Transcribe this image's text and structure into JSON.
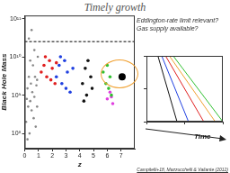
{
  "chart_data": [
    {
      "type": "scatter",
      "title": "Timely growth",
      "x_label": "z",
      "y_label": "Black Hole Mass",
      "annotations": [
        "Eddington-rate limit relevant?",
        "Gas supply available?",
        "Campitelli+18, Mazzucchelli & Valiante (2012)"
      ],
      "log": "y",
      "grid": false,
      "xlim": [
        0,
        8
      ],
      "xticks": [
        0,
        1,
        2,
        3,
        4,
        5,
        6,
        7
      ],
      "ylim": [
        40000000,
        120000000000
      ],
      "yticks": [
        {
          "value": 100000000,
          "label": "10⁸"
        },
        {
          "value": 1000000000,
          "label": "10⁹"
        },
        {
          "value": 10000000000,
          "label": "10¹⁰"
        },
        {
          "value": 100000000000,
          "label": "10¹¹"
        }
      ],
      "series": [
        {
          "color": "#888888",
          "marker": "circle",
          "x": [
            0.1,
            0.15,
            0.2,
            0.25,
            0.3,
            0.35,
            0.4,
            0.45,
            0.5,
            0.55,
            0.6,
            0.65,
            0.7,
            0.75,
            0.8,
            0.85,
            0.9,
            0.95,
            0.3,
            0.5,
            0.2,
            0.7,
            0.4,
            0.9
          ],
          "values": [
            200000000,
            800000000,
            1500000000,
            500000000,
            3000000000,
            100000000,
            700000000,
            2000000000,
            400000000,
            1200000000,
            6000000000,
            250000000,
            900000000,
            3000000000,
            150000000,
            1800000000,
            500000000,
            10000000000,
            30000000000,
            50000000000,
            70000000,
            15000000000,
            8000000000,
            2500000000
          ]
        },
        {
          "color": "#e02020",
          "marker": "circle",
          "x": [
            1.2,
            1.4,
            1.6,
            1.8,
            2.0,
            2.2,
            1.5,
            2.3,
            1.9
          ],
          "values": [
            4000000000,
            6000000000,
            3000000000,
            8000000000,
            5000000000,
            2000000000,
            10000000000,
            7000000000,
            2500000000
          ]
        },
        {
          "color": "#2040e0",
          "marker": "circle",
          "x": [
            2.3,
            2.5,
            2.7,
            2.9,
            3.1,
            3.3,
            3.5,
            2.6,
            3.0
          ],
          "values": [
            3000000000,
            6000000000,
            2000000000,
            8000000000,
            4000000000,
            1200000000,
            5000000000,
            10000000000,
            1500000000
          ]
        },
        {
          "color": "#111111",
          "marker": "circle",
          "x": [
            4.2,
            4.4,
            4.5,
            4.6,
            4.8,
            4.9,
            4.3
          ],
          "values": [
            2000000000,
            5000000000,
            1000000000,
            8000000000,
            3000000000,
            1500000000,
            700000000
          ]
        },
        {
          "color": "#30c030",
          "marker": "circle",
          "x": [
            5.7,
            5.9,
            6.0,
            6.1,
            6.2,
            6.3
          ],
          "values": [
            4000000000,
            2000000000,
            6000000000,
            1500000000,
            3000000000,
            1000000000
          ]
        },
        {
          "color": "#e040e0",
          "marker": "circle",
          "x": [
            6.0,
            6.2,
            6.4,
            6.3
          ],
          "values": [
            800000000,
            1200000000,
            600000000,
            900000000
          ]
        },
        {
          "color": "#000000",
          "marker": "circle",
          "x": [
            7.08
          ],
          "values": [
            3000000000
          ]
        },
        {
          "color": "#000000",
          "type": "line",
          "line_style": "dashed",
          "x": [
            0,
            8
          ],
          "values": [
            25000000000,
            25000000000
          ]
        }
      ]
    },
    {
      "type": "line",
      "x_label": "Time",
      "grid": false,
      "tick_labels": false,
      "xlim": [
        0,
        1
      ],
      "xticks": [
        0,
        0.5,
        1
      ],
      "ylim": [
        0,
        1
      ],
      "yticks": [
        0,
        0.5,
        1
      ],
      "series": [
        {
          "color": "#111111",
          "x": [
            0,
            0.15,
            0.4
          ],
          "values": [
            1,
            1,
            0
          ]
        },
        {
          "color": "#2040e0",
          "x": [
            0,
            0.2,
            0.55
          ],
          "values": [
            1,
            1,
            0
          ]
        },
        {
          "color": "#e02020",
          "x": [
            0,
            0.25,
            0.75
          ],
          "values": [
            1,
            1,
            0
          ]
        },
        {
          "color": "#f0a030",
          "x": [
            0,
            0.3,
            0.9
          ],
          "values": [
            1,
            1,
            0
          ]
        },
        {
          "color": "#30c030",
          "x": [
            0,
            0.35,
            1.0
          ],
          "values": [
            1,
            1,
            0
          ]
        }
      ]
    }
  ]
}
